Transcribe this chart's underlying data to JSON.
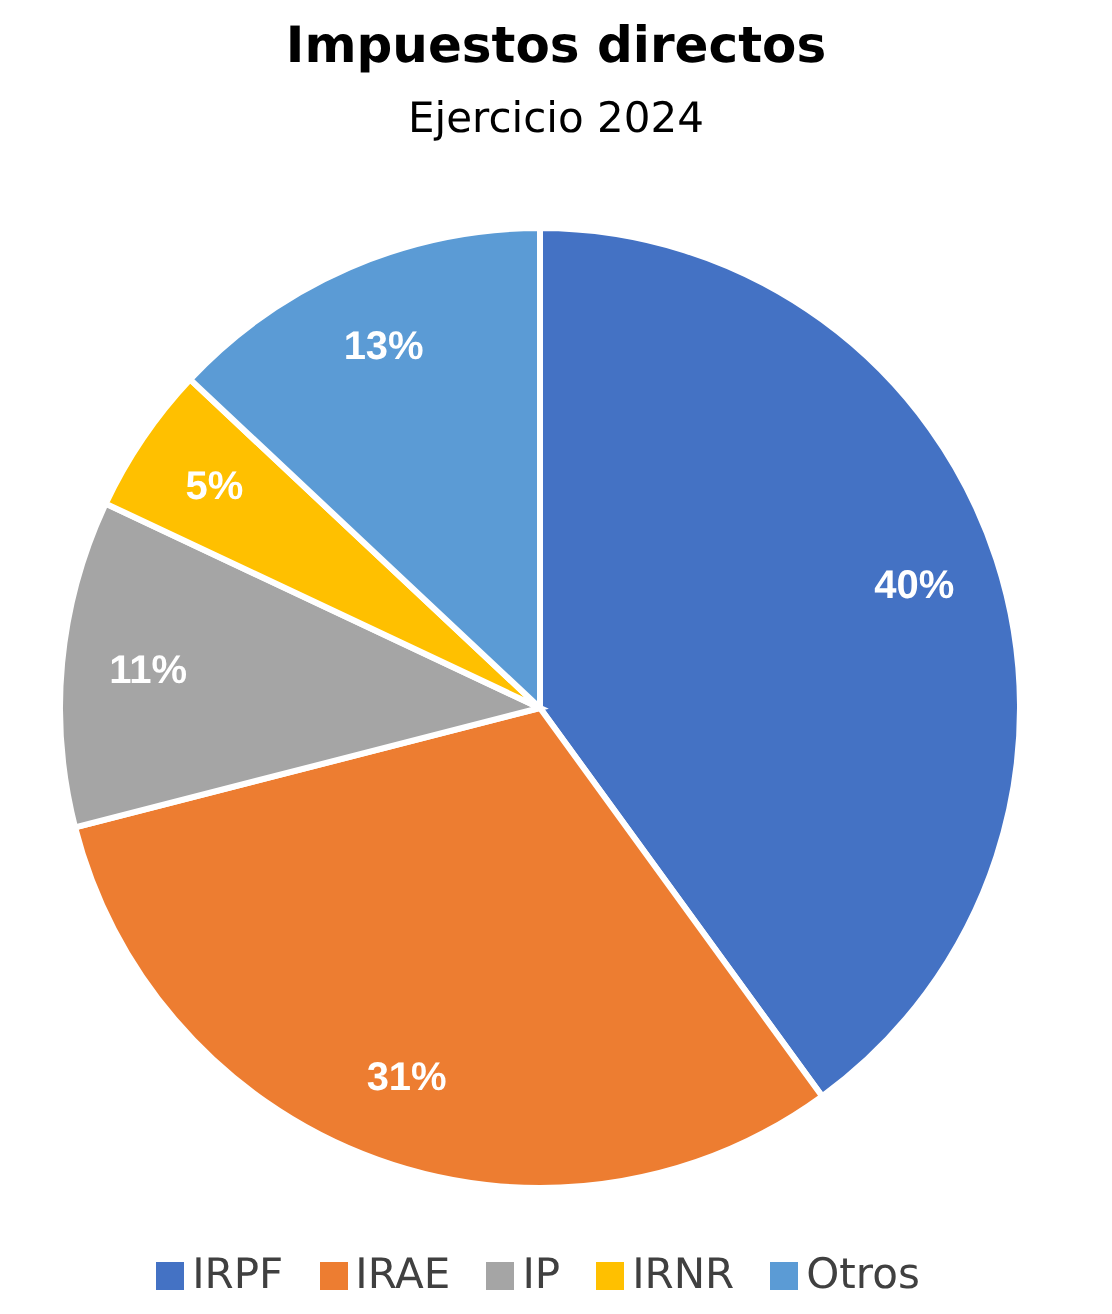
{
  "chart_data": {
    "type": "pie",
    "title": "Impuestos directos",
    "subtitle": "Ejercicio 2024",
    "categories": [
      "IRPF",
      "IRAE",
      "IP",
      "IRNR",
      "Otros"
    ],
    "values": [
      40,
      31,
      11,
      5,
      13
    ],
    "value_labels": [
      "40%",
      "31%",
      "11%",
      "5%",
      "13%"
    ],
    "colors": [
      "#4472c4",
      "#ed7d31",
      "#a5a5a5",
      "#ffc000",
      "#5b9bd5"
    ],
    "legend": "bottom"
  }
}
